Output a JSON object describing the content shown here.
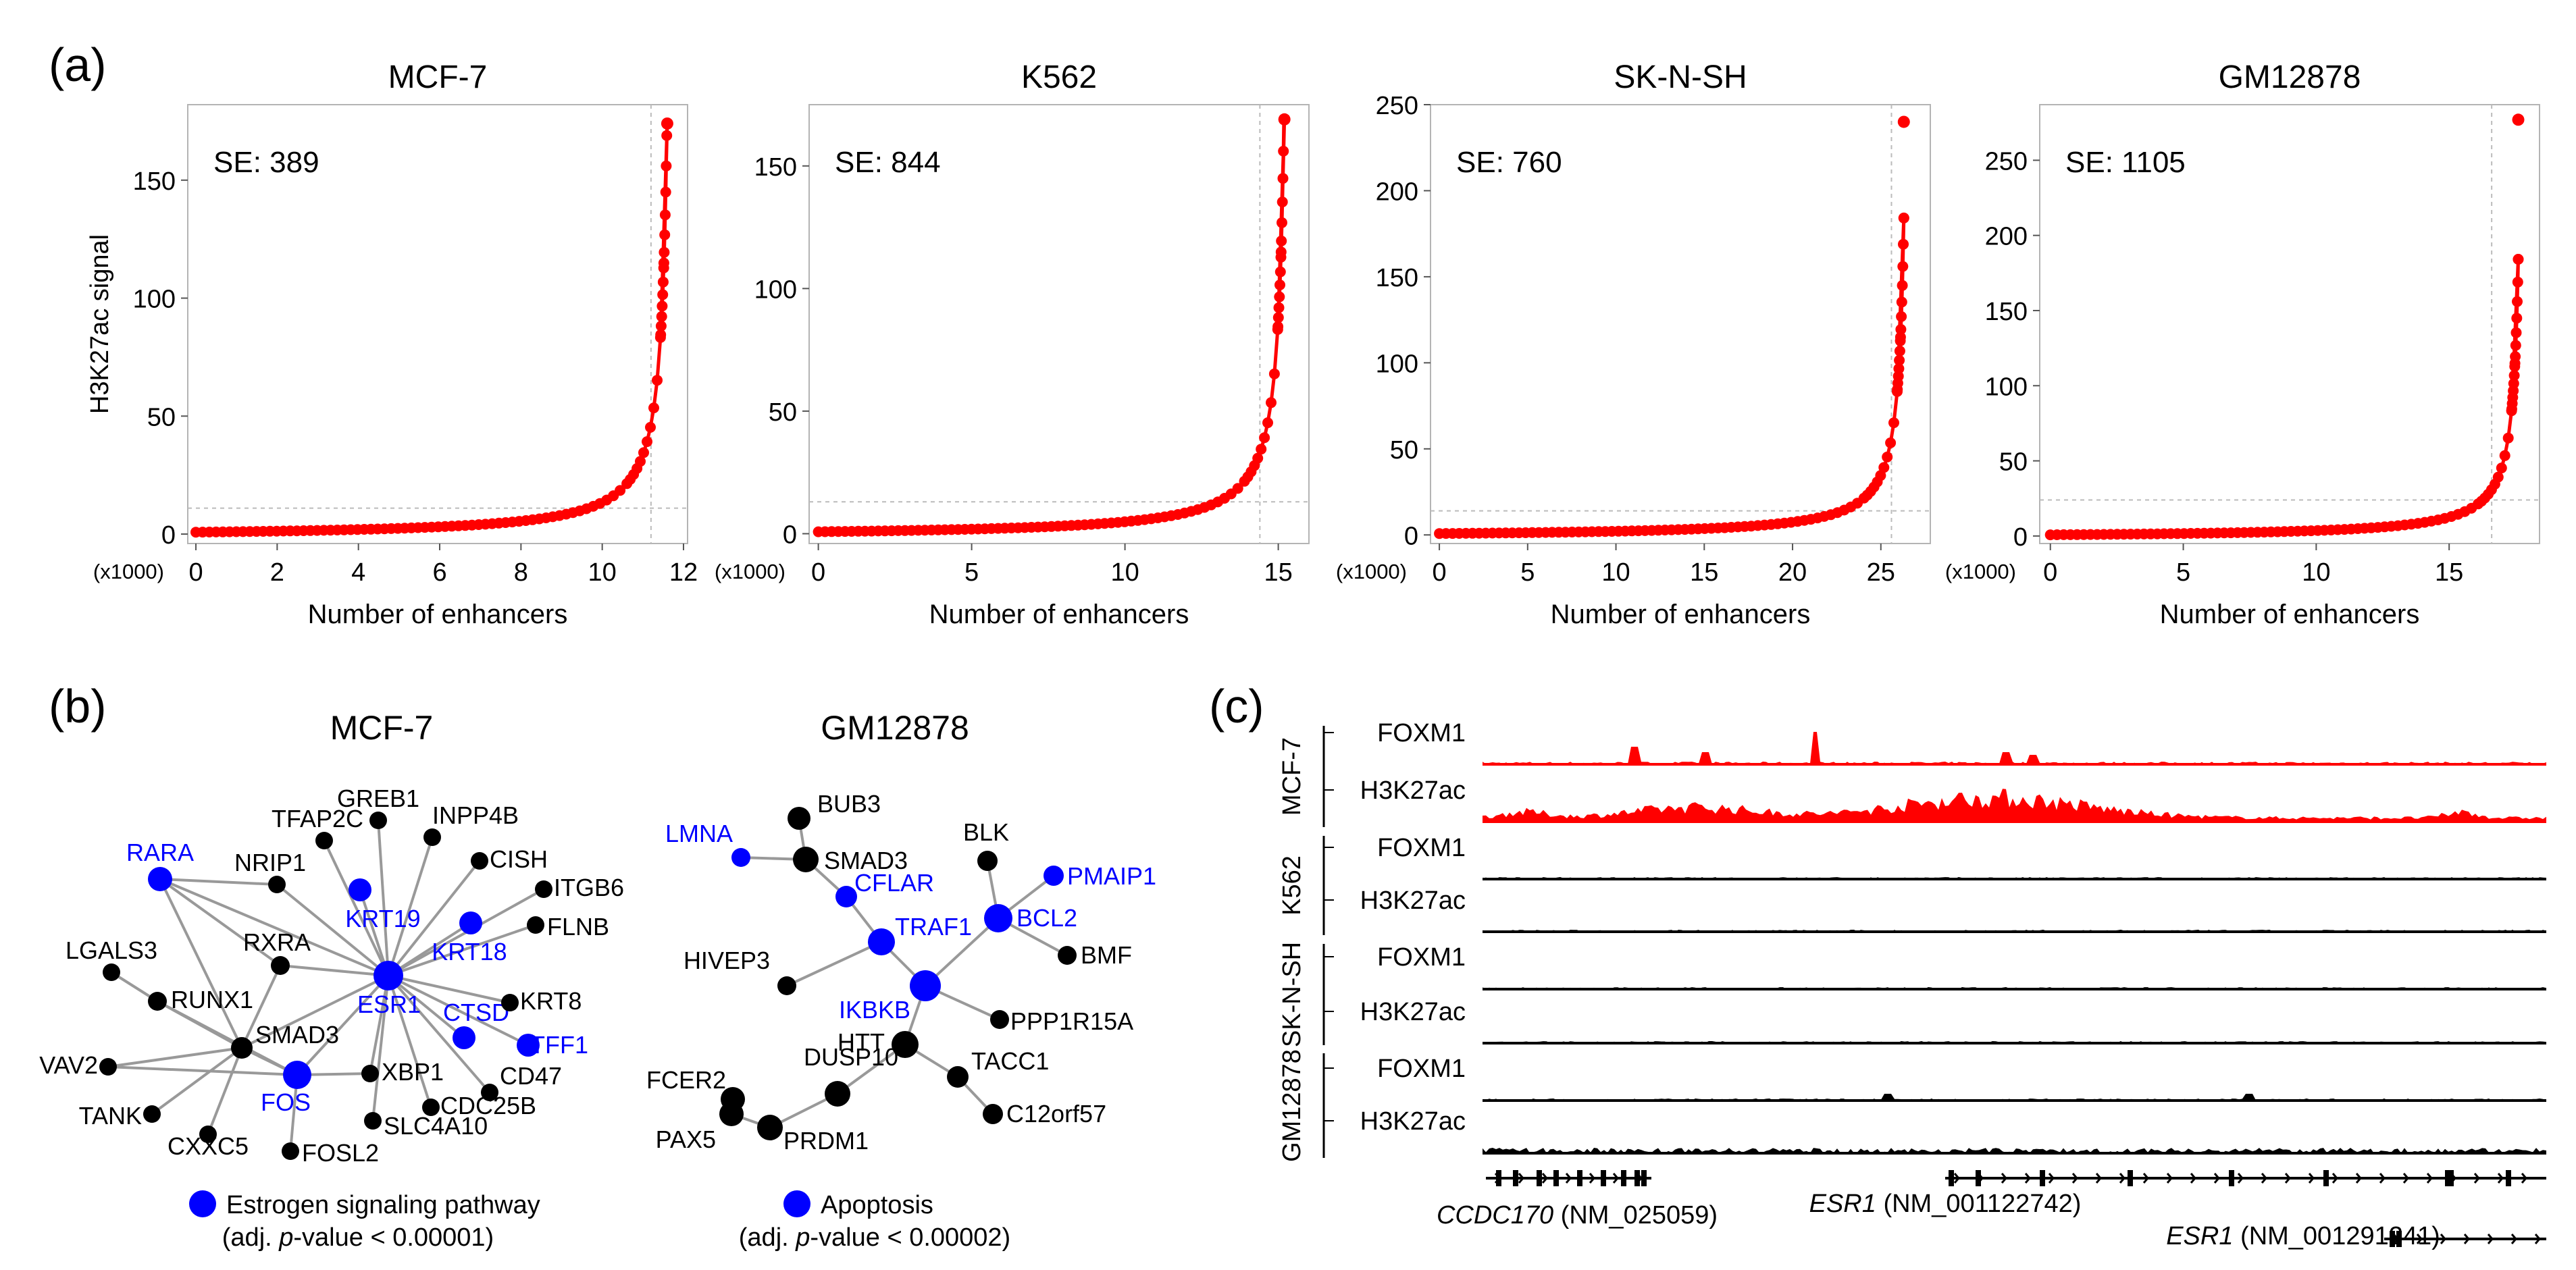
{
  "panel_labels": {
    "a": "(a)",
    "b": "(b)",
    "c": "(c)"
  },
  "colors": {
    "curve": "#ff0000",
    "highlight": "#0000ff",
    "node": "#000000",
    "edge": "#999999",
    "track": "#000000",
    "frame": "#b4b4b4",
    "dash": "#bbbbbb"
  },
  "chart_data": [
    {
      "type": "scatter",
      "title": "MCF-7",
      "annotation": "SE: 389",
      "xlabel": "Number of enhancers",
      "ylabel": "H3K27ac signal",
      "x_multiplier": "(x1000)",
      "xlim": [
        -0.2,
        12.1
      ],
      "ylim": [
        -4,
        182
      ],
      "xticks": [
        0,
        2,
        4,
        6,
        8,
        10,
        12
      ],
      "yticks": [
        0,
        50,
        100,
        150
      ],
      "n_enhancers_thousands": 11.6,
      "max_signal": 174,
      "cutoff_x": 11.2,
      "cutoff_y": 11
    },
    {
      "type": "scatter",
      "title": "K562",
      "annotation": "SE: 844",
      "xlabel": "Number of enhancers",
      "ylabel": "",
      "x_multiplier": "(x1000)",
      "xlim": [
        -0.3,
        16.0
      ],
      "ylim": [
        -4,
        175
      ],
      "xticks": [
        0,
        5,
        10,
        15
      ],
      "yticks": [
        0,
        50,
        100,
        150
      ],
      "n_enhancers_thousands": 15.2,
      "max_signal": 169,
      "cutoff_x": 14.4,
      "cutoff_y": 13
    },
    {
      "type": "scatter",
      "title": "SK-N-SH",
      "annotation": "SE: 760",
      "xlabel": "Number of enhancers",
      "ylabel": "",
      "x_multiplier": "(x1000)",
      "xlim": [
        -0.5,
        27.8
      ],
      "ylim": [
        -5,
        250
      ],
      "xticks": [
        0,
        5,
        10,
        15,
        20,
        25
      ],
      "yticks": [
        0,
        50,
        100,
        150,
        200,
        250
      ],
      "n_enhancers_thousands": 26.3,
      "max_signal": 240,
      "cutoff_x": 25.6,
      "cutoff_y": 14
    },
    {
      "type": "scatter",
      "title": "GM12878",
      "annotation": "SE: 1105",
      "xlabel": "Number of enhancers",
      "ylabel": "",
      "x_multiplier": "(x1000)",
      "xlim": [
        -0.4,
        18.4
      ],
      "ylim": [
        -5,
        287
      ],
      "xticks": [
        0,
        5,
        10,
        15
      ],
      "yticks": [
        0,
        50,
        100,
        150,
        200,
        250
      ],
      "n_enhancers_thousands": 17.6,
      "max_signal": 277,
      "cutoff_x": 16.6,
      "cutoff_y": 24
    }
  ],
  "networks": [
    {
      "title": "MCF-7",
      "legend_label": "Estrogen signaling pathway",
      "legend_pvalue": [
        "(adj. ",
        "p",
        "-value < 0.00001)"
      ],
      "nodes": [
        {
          "id": "ESR1",
          "label": "ESR1",
          "hl": true,
          "r": 22
        },
        {
          "id": "FOS",
          "label": "FOS",
          "hl": true,
          "r": 21
        },
        {
          "id": "SMAD3",
          "label": "SMAD3",
          "hl": false,
          "r": 16
        },
        {
          "id": "RARA",
          "label": "RARA",
          "hl": true,
          "r": 18
        },
        {
          "id": "KRT19",
          "label": "KRT19",
          "hl": true,
          "r": 17
        },
        {
          "id": "KRT18",
          "label": "KRT18",
          "hl": true,
          "r": 17
        },
        {
          "id": "CTSD",
          "label": "CTSD",
          "hl": true,
          "r": 17
        },
        {
          "id": "TFF1",
          "label": "TFF1",
          "hl": true,
          "r": 17
        },
        {
          "id": "GREB1",
          "label": "GREB1",
          "hl": false,
          "r": 13
        },
        {
          "id": "TFAP2C",
          "label": "TFAP2C",
          "hl": false,
          "r": 13
        },
        {
          "id": "INPP4B",
          "label": "INPP4B",
          "hl": false,
          "r": 13
        },
        {
          "id": "CISH",
          "label": "CISH",
          "hl": false,
          "r": 13
        },
        {
          "id": "ITGB6",
          "label": "ITGB6",
          "hl": false,
          "r": 13
        },
        {
          "id": "FLNB",
          "label": "FLNB",
          "hl": false,
          "r": 13
        },
        {
          "id": "KRT8",
          "label": "KRT8",
          "hl": false,
          "r": 13
        },
        {
          "id": "NRIP1",
          "label": "NRIP1",
          "hl": false,
          "r": 13
        },
        {
          "id": "RXRA",
          "label": "RXRA",
          "hl": false,
          "r": 14
        },
        {
          "id": "LGALS3",
          "label": "LGALS3",
          "hl": false,
          "r": 13
        },
        {
          "id": "RUNX1",
          "label": "RUNX1",
          "hl": false,
          "r": 14
        },
        {
          "id": "VAV2",
          "label": "VAV2",
          "hl": false,
          "r": 13
        },
        {
          "id": "TANK",
          "label": "TANK",
          "hl": false,
          "r": 13
        },
        {
          "id": "CXXC5",
          "label": "CXXC5",
          "hl": false,
          "r": 13
        },
        {
          "id": "FOSL2",
          "label": "FOSL2",
          "hl": false,
          "r": 13
        },
        {
          "id": "SLC4A10",
          "label": "SLC4A10",
          "hl": false,
          "r": 13
        },
        {
          "id": "CDC25B",
          "label": "CDC25B",
          "hl": false,
          "r": 13
        },
        {
          "id": "CD47",
          "label": "CD47",
          "hl": false,
          "r": 13
        },
        {
          "id": "XBP1",
          "label": "XBP1",
          "hl": false,
          "r": 13
        }
      ],
      "edges": [
        [
          "ESR1",
          "GREB1"
        ],
        [
          "ESR1",
          "TFAP2C"
        ],
        [
          "ESR1",
          "INPP4B"
        ],
        [
          "ESR1",
          "CISH"
        ],
        [
          "ESR1",
          "ITGB6"
        ],
        [
          "ESR1",
          "FLNB"
        ],
        [
          "ESR1",
          "KRT8"
        ],
        [
          "ESR1",
          "KRT19"
        ],
        [
          "ESR1",
          "KRT18"
        ],
        [
          "ESR1",
          "CTSD"
        ],
        [
          "ESR1",
          "TFF1"
        ],
        [
          "ESR1",
          "NRIP1"
        ],
        [
          "ESR1",
          "RXRA"
        ],
        [
          "ESR1",
          "RARA"
        ],
        [
          "ESR1",
          "SMAD3"
        ],
        [
          "ESR1",
          "FOS"
        ],
        [
          "ESR1",
          "XBP1"
        ],
        [
          "ESR1",
          "CD47"
        ],
        [
          "ESR1",
          "CDC25B"
        ],
        [
          "ESR1",
          "SLC4A10"
        ],
        [
          "RARA",
          "RXRA"
        ],
        [
          "RARA",
          "NRIP1"
        ],
        [
          "RARA",
          "SMAD3"
        ],
        [
          "RXRA",
          "SMAD3"
        ],
        [
          "RUNX1",
          "LGALS3"
        ],
        [
          "RUNX1",
          "SMAD3"
        ],
        [
          "RUNX1",
          "FOS"
        ],
        [
          "SMAD3",
          "FOS"
        ],
        [
          "SMAD3",
          "VAV2"
        ],
        [
          "SMAD3",
          "TANK"
        ],
        [
          "SMAD3",
          "CXXC5"
        ],
        [
          "FOS",
          "FOSL2"
        ],
        [
          "FOS",
          "VAV2"
        ],
        [
          "FOS",
          "XBP1"
        ]
      ]
    },
    {
      "title": "GM12878",
      "legend_label": "Apoptosis",
      "legend_pvalue": [
        "(adj. ",
        "p",
        "-value < 0.00002)"
      ],
      "nodes": [
        {
          "id": "BUB3",
          "label": "BUB3",
          "hl": false,
          "r": 17
        },
        {
          "id": "SMAD3",
          "label": "SMAD3",
          "hl": false,
          "r": 19
        },
        {
          "id": "LMNA",
          "label": "LMNA",
          "hl": true,
          "r": 14
        },
        {
          "id": "CFLAR",
          "label": "CFLAR",
          "hl": true,
          "r": 16
        },
        {
          "id": "TRAF1",
          "label": "TRAF1",
          "hl": true,
          "r": 20
        },
        {
          "id": "BCL2",
          "label": "BCL2",
          "hl": true,
          "r": 21
        },
        {
          "id": "PMAIP1",
          "label": "PMAIP1",
          "hl": true,
          "r": 15
        },
        {
          "id": "BLK",
          "label": "BLK",
          "hl": false,
          "r": 15
        },
        {
          "id": "BMF",
          "label": "BMF",
          "hl": false,
          "r": 14
        },
        {
          "id": "HIVEP3",
          "label": "HIVEP3",
          "hl": false,
          "r": 14
        },
        {
          "id": "IKBKB",
          "label": "IKBKB",
          "hl": true,
          "r": 23
        },
        {
          "id": "PPP1R15A",
          "label": "PPP1R15A",
          "hl": false,
          "r": 14
        },
        {
          "id": "HTT",
          "label": "HTT",
          "hl": false,
          "r": 20
        },
        {
          "id": "TACC1",
          "label": "TACC1",
          "hl": false,
          "r": 16
        },
        {
          "id": "C12orf57",
          "label": "C12orf57",
          "hl": false,
          "r": 15
        },
        {
          "id": "DUSP10",
          "label": "DUSP10",
          "hl": false,
          "r": 19
        },
        {
          "id": "FCER2",
          "label": "FCER2",
          "hl": false,
          "r": 18
        },
        {
          "id": "PAX5",
          "label": "PAX5",
          "hl": false,
          "r": 18
        },
        {
          "id": "PRDM1",
          "label": "PRDM1",
          "hl": false,
          "r": 19
        }
      ],
      "edges": [
        [
          "BUB3",
          "SMAD3"
        ],
        [
          "SMAD3",
          "LMNA"
        ],
        [
          "SMAD3",
          "CFLAR"
        ],
        [
          "CFLAR",
          "TRAF1"
        ],
        [
          "TRAF1",
          "IKBKB"
        ],
        [
          "TRAF1",
          "HIVEP3"
        ],
        [
          "IKBKB",
          "BCL2"
        ],
        [
          "IKBKB",
          "PPP1R15A"
        ],
        [
          "IKBKB",
          "HTT"
        ],
        [
          "BCL2",
          "BLK"
        ],
        [
          "BCL2",
          "PMAIP1"
        ],
        [
          "BCL2",
          "BMF"
        ],
        [
          "HTT",
          "TACC1"
        ],
        [
          "HTT",
          "DUSP10"
        ],
        [
          "TACC1",
          "C12orf57"
        ],
        [
          "DUSP10",
          "PRDM1"
        ],
        [
          "PRDM1",
          "PAX5"
        ],
        [
          "PAX5",
          "FCER2"
        ]
      ]
    }
  ],
  "tracks": {
    "groups": [
      {
        "cell": "MCF-7",
        "tracks": [
          {
            "label": "FOXM1",
            "color": "#ff0000"
          },
          {
            "label": "H3K27ac",
            "color": "#ff0000"
          }
        ]
      },
      {
        "cell": "K562",
        "tracks": [
          {
            "label": "FOXM1",
            "color": "#000000"
          },
          {
            "label": "H3K27ac",
            "color": "#000000"
          }
        ]
      },
      {
        "cell": "SK-N-SH",
        "tracks": [
          {
            "label": "FOXM1",
            "color": "#000000"
          },
          {
            "label": "H3K27ac",
            "color": "#000000"
          }
        ]
      },
      {
        "cell": "GM12878",
        "tracks": [
          {
            "label": "FOXM1",
            "color": "#000000"
          },
          {
            "label": "H3K27ac",
            "color": "#000000"
          }
        ]
      }
    ],
    "genes": [
      {
        "name": "CCDC170",
        "accession": " (NM_025059)"
      },
      {
        "name": "ESR1",
        "accession": " (NM_001122742)"
      },
      {
        "name": "ESR1",
        "accession": " (NM_001291241)"
      }
    ]
  }
}
